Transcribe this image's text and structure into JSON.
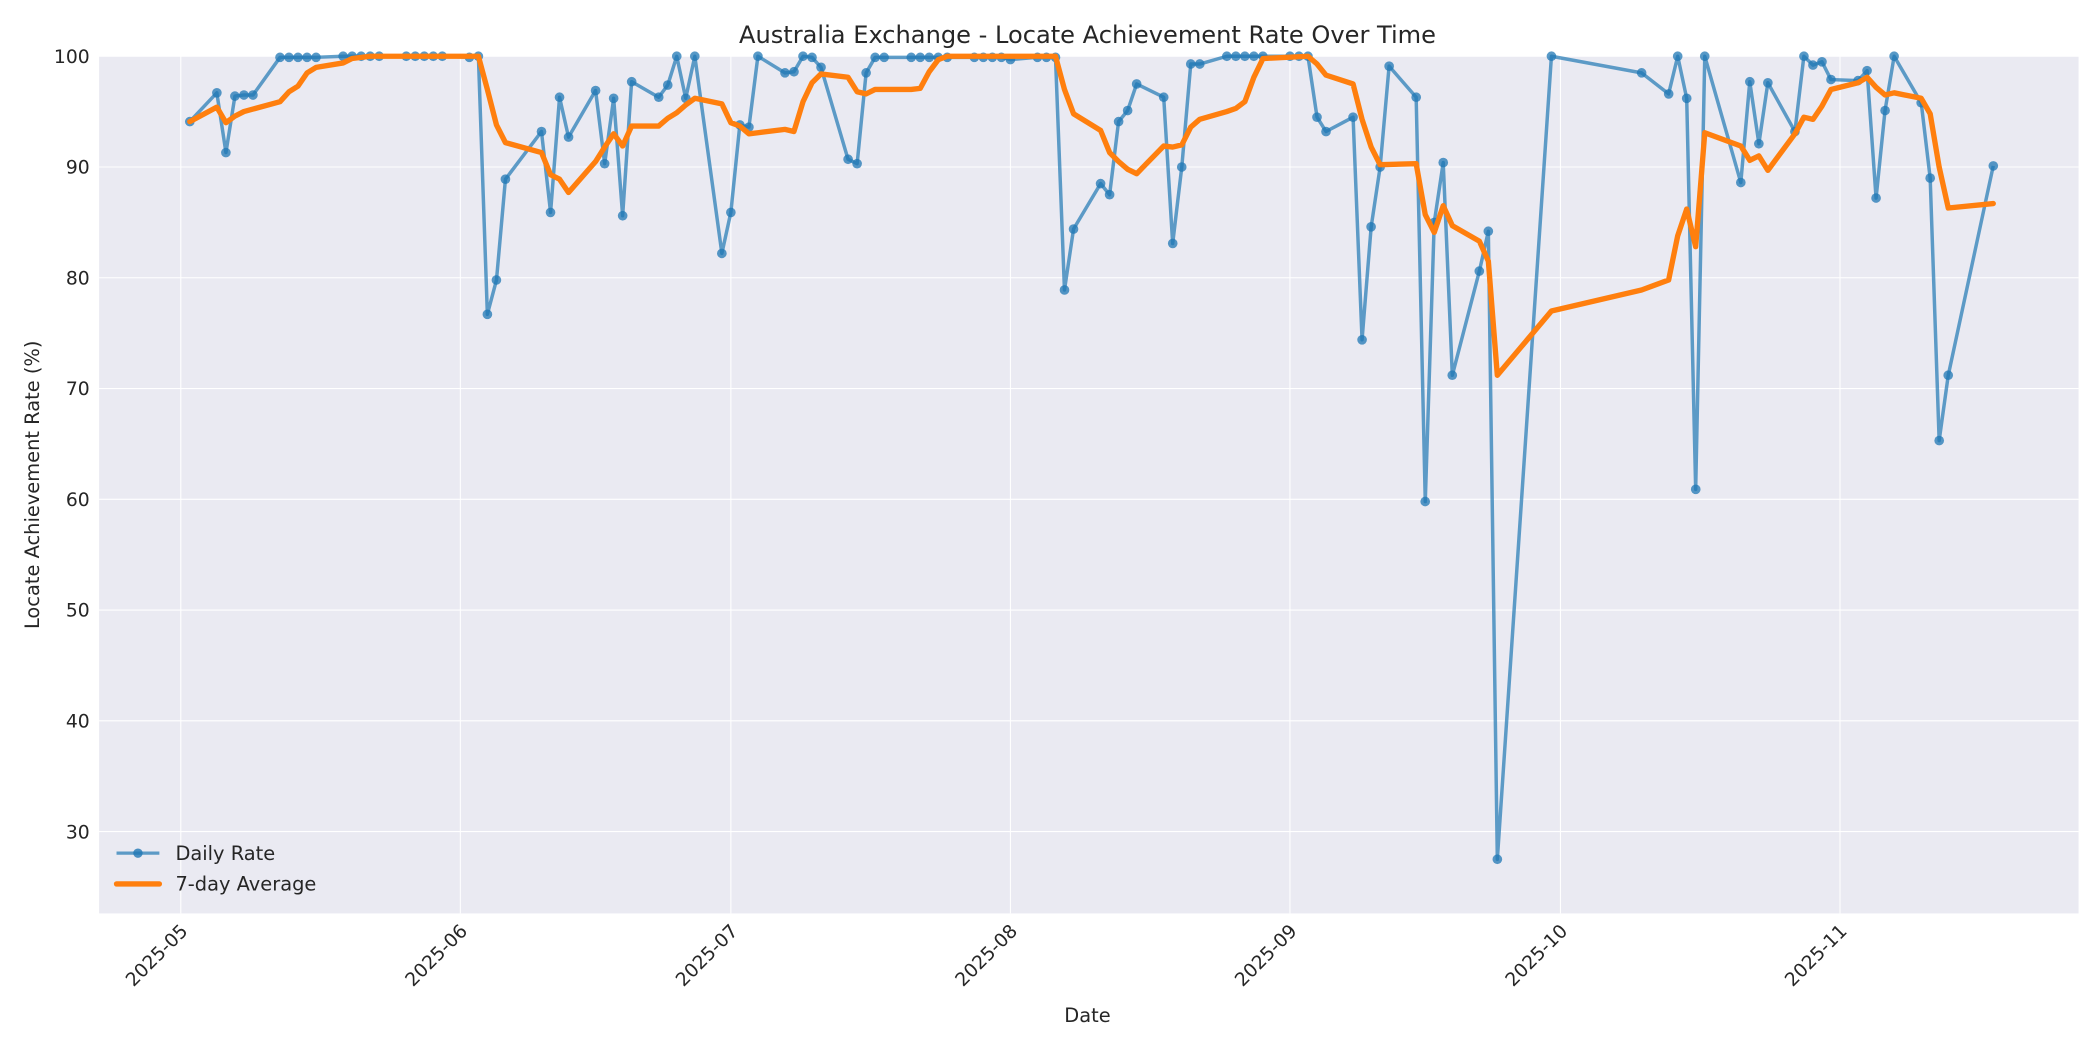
{
  "chart_data": {
    "type": "line",
    "title": "Australia Exchange - Locate Achievement Rate Over Time",
    "xlabel": "Date",
    "ylabel": "Locate Achievement Rate (%)",
    "ylim": [
      22.5,
      100
    ],
    "yticks": [
      30,
      40,
      50,
      60,
      70,
      80,
      90,
      100
    ],
    "xticks": [
      "2025-05",
      "2025-06",
      "2025-07",
      "2025-08",
      "2025-09",
      "2025-10",
      "2025-11"
    ],
    "grid": true,
    "legend_position": "lower left",
    "colors": {
      "daily": "#1f77b4",
      "avg": "#ff7f0e",
      "plot_bg": "#eaeaf2",
      "grid": "#ffffff"
    },
    "series": [
      {
        "name": "Daily Rate",
        "style": "line+markers",
        "points": [
          [
            "2025-05-02",
            94.1
          ],
          [
            "2025-05-05",
            96.7
          ],
          [
            "2025-05-06",
            91.3
          ],
          [
            "2025-05-07",
            96.4
          ],
          [
            "2025-05-08",
            96.5
          ],
          [
            "2025-05-09",
            96.5
          ],
          [
            "2025-05-12",
            99.9
          ],
          [
            "2025-05-13",
            99.9
          ],
          [
            "2025-05-14",
            99.9
          ],
          [
            "2025-05-15",
            99.9
          ],
          [
            "2025-05-16",
            99.9
          ],
          [
            "2025-05-19",
            100.0
          ],
          [
            "2025-05-20",
            100.0
          ],
          [
            "2025-05-21",
            100.0
          ],
          [
            "2025-05-22",
            100.0
          ],
          [
            "2025-05-23",
            100.0
          ],
          [
            "2025-05-26",
            100.0
          ],
          [
            "2025-05-27",
            100.0
          ],
          [
            "2025-05-28",
            100.0
          ],
          [
            "2025-05-29",
            100.0
          ],
          [
            "2025-05-30",
            100.0
          ],
          [
            "2025-06-02",
            99.9
          ],
          [
            "2025-06-03",
            100.0
          ],
          [
            "2025-06-04",
            76.7
          ],
          [
            "2025-06-05",
            79.8
          ],
          [
            "2025-06-06",
            88.9
          ],
          [
            "2025-06-10",
            93.2
          ],
          [
            "2025-06-11",
            85.9
          ],
          [
            "2025-06-12",
            96.3
          ],
          [
            "2025-06-13",
            92.7
          ],
          [
            "2025-06-16",
            96.9
          ],
          [
            "2025-06-17",
            90.3
          ],
          [
            "2025-06-18",
            96.2
          ],
          [
            "2025-06-19",
            85.6
          ],
          [
            "2025-06-20",
            97.7
          ],
          [
            "2025-06-23",
            96.3
          ],
          [
            "2025-06-24",
            97.4
          ],
          [
            "2025-06-25",
            100.0
          ],
          [
            "2025-06-26",
            96.2
          ],
          [
            "2025-06-27",
            100.0
          ],
          [
            "2025-06-30",
            82.2
          ],
          [
            "2025-07-01",
            85.9
          ],
          [
            "2025-07-02",
            93.8
          ],
          [
            "2025-07-03",
            93.6
          ],
          [
            "2025-07-04",
            100.0
          ],
          [
            "2025-07-07",
            98.5
          ],
          [
            "2025-07-08",
            98.6
          ],
          [
            "2025-07-09",
            100.0
          ],
          [
            "2025-07-10",
            99.9
          ],
          [
            "2025-07-11",
            99.0
          ],
          [
            "2025-07-14",
            90.7
          ],
          [
            "2025-07-15",
            90.3
          ],
          [
            "2025-07-16",
            98.5
          ],
          [
            "2025-07-17",
            99.9
          ],
          [
            "2025-07-18",
            99.9
          ],
          [
            "2025-07-21",
            99.9
          ],
          [
            "2025-07-22",
            99.9
          ],
          [
            "2025-07-23",
            99.9
          ],
          [
            "2025-07-24",
            99.9
          ],
          [
            "2025-07-25",
            99.9
          ],
          [
            "2025-07-28",
            99.9
          ],
          [
            "2025-07-29",
            99.9
          ],
          [
            "2025-07-30",
            99.9
          ],
          [
            "2025-07-31",
            99.9
          ],
          [
            "2025-08-01",
            99.7
          ],
          [
            "2025-08-04",
            99.9
          ],
          [
            "2025-08-05",
            99.9
          ],
          [
            "2025-08-06",
            99.9
          ],
          [
            "2025-08-07",
            78.9
          ],
          [
            "2025-08-08",
            84.4
          ],
          [
            "2025-08-11",
            88.5
          ],
          [
            "2025-08-12",
            87.5
          ],
          [
            "2025-08-13",
            94.1
          ],
          [
            "2025-08-14",
            95.1
          ],
          [
            "2025-08-15",
            97.5
          ],
          [
            "2025-08-18",
            96.3
          ],
          [
            "2025-08-19",
            83.1
          ],
          [
            "2025-08-20",
            90.0
          ],
          [
            "2025-08-21",
            99.3
          ],
          [
            "2025-08-22",
            99.3
          ],
          [
            "2025-08-25",
            100.0
          ],
          [
            "2025-08-26",
            100.0
          ],
          [
            "2025-08-27",
            100.0
          ],
          [
            "2025-08-28",
            100.0
          ],
          [
            "2025-08-29",
            100.0
          ],
          [
            "2025-09-01",
            100.0
          ],
          [
            "2025-09-02",
            100.0
          ],
          [
            "2025-09-03",
            100.0
          ],
          [
            "2025-09-04",
            94.5
          ],
          [
            "2025-09-05",
            93.2
          ],
          [
            "2025-09-08",
            94.5
          ],
          [
            "2025-09-09",
            74.4
          ],
          [
            "2025-09-10",
            84.6
          ],
          [
            "2025-09-11",
            90.0
          ],
          [
            "2025-09-12",
            99.1
          ],
          [
            "2025-09-15",
            96.3
          ],
          [
            "2025-09-16",
            59.8
          ],
          [
            "2025-09-17",
            85.0
          ],
          [
            "2025-09-18",
            90.4
          ],
          [
            "2025-09-19",
            71.2
          ],
          [
            "2025-09-22",
            80.6
          ],
          [
            "2025-09-23",
            84.2
          ],
          [
            "2025-09-24",
            27.5
          ],
          [
            "2025-09-30",
            100.0
          ],
          [
            "2025-10-10",
            98.5
          ],
          [
            "2025-10-13",
            96.6
          ],
          [
            "2025-10-14",
            100.0
          ],
          [
            "2025-10-15",
            96.2
          ],
          [
            "2025-10-16",
            60.9
          ],
          [
            "2025-10-17",
            100.0
          ],
          [
            "2025-10-21",
            88.6
          ],
          [
            "2025-10-22",
            97.7
          ],
          [
            "2025-10-23",
            92.1
          ],
          [
            "2025-10-24",
            97.6
          ],
          [
            "2025-10-27",
            93.2
          ],
          [
            "2025-10-28",
            100.0
          ],
          [
            "2025-10-29",
            99.2
          ],
          [
            "2025-10-30",
            99.5
          ],
          [
            "2025-10-31",
            97.9
          ],
          [
            "2025-11-03",
            97.8
          ],
          [
            "2025-11-04",
            98.7
          ],
          [
            "2025-11-05",
            87.2
          ],
          [
            "2025-11-06",
            95.1
          ],
          [
            "2025-11-07",
            100.0
          ],
          [
            "2025-11-10",
            95.8
          ],
          [
            "2025-11-11",
            89.0
          ],
          [
            "2025-11-12",
            65.3
          ],
          [
            "2025-11-13",
            71.2
          ],
          [
            "2025-11-18",
            90.1
          ]
        ]
      },
      {
        "name": "7-day Average",
        "style": "line",
        "points": [
          [
            "2025-05-02",
            94.1
          ],
          [
            "2025-05-05",
            95.4
          ],
          [
            "2025-05-06",
            94.0
          ],
          [
            "2025-05-07",
            94.6
          ],
          [
            "2025-05-08",
            95.0
          ],
          [
            "2025-05-12",
            95.9
          ],
          [
            "2025-05-13",
            96.8
          ],
          [
            "2025-05-14",
            97.3
          ],
          [
            "2025-05-15",
            98.5
          ],
          [
            "2025-05-16",
            99.0
          ],
          [
            "2025-05-19",
            99.4
          ],
          [
            "2025-05-20",
            99.8
          ],
          [
            "2025-05-22",
            100.0
          ],
          [
            "2025-06-03",
            100.0
          ],
          [
            "2025-06-04",
            97.0
          ],
          [
            "2025-06-05",
            93.8
          ],
          [
            "2025-06-06",
            92.2
          ],
          [
            "2025-06-10",
            91.3
          ],
          [
            "2025-06-11",
            89.3
          ],
          [
            "2025-06-12",
            88.9
          ],
          [
            "2025-06-13",
            87.7
          ],
          [
            "2025-06-16",
            90.5
          ],
          [
            "2025-06-17",
            91.8
          ],
          [
            "2025-06-18",
            93.0
          ],
          [
            "2025-06-19",
            91.9
          ],
          [
            "2025-06-20",
            93.7
          ],
          [
            "2025-06-23",
            93.7
          ],
          [
            "2025-06-24",
            94.4
          ],
          [
            "2025-06-25",
            94.9
          ],
          [
            "2025-06-26",
            95.6
          ],
          [
            "2025-06-27",
            96.2
          ],
          [
            "2025-06-30",
            95.7
          ],
          [
            "2025-07-01",
            94.0
          ],
          [
            "2025-07-02",
            93.7
          ],
          [
            "2025-07-03",
            93.0
          ],
          [
            "2025-07-04",
            93.1
          ],
          [
            "2025-07-07",
            93.4
          ],
          [
            "2025-07-08",
            93.2
          ],
          [
            "2025-07-09",
            95.9
          ],
          [
            "2025-07-10",
            97.6
          ],
          [
            "2025-07-11",
            98.4
          ],
          [
            "2025-07-14",
            98.1
          ],
          [
            "2025-07-15",
            96.8
          ],
          [
            "2025-07-16",
            96.6
          ],
          [
            "2025-07-17",
            97.0
          ],
          [
            "2025-07-21",
            97.0
          ],
          [
            "2025-07-22",
            97.1
          ],
          [
            "2025-07-23",
            98.6
          ],
          [
            "2025-07-24",
            99.7
          ],
          [
            "2025-07-25",
            100.0
          ],
          [
            "2025-08-06",
            100.0
          ],
          [
            "2025-08-07",
            97.0
          ],
          [
            "2025-08-08",
            94.8
          ],
          [
            "2025-08-11",
            93.3
          ],
          [
            "2025-08-12",
            91.3
          ],
          [
            "2025-08-13",
            90.5
          ],
          [
            "2025-08-14",
            89.8
          ],
          [
            "2025-08-15",
            89.4
          ],
          [
            "2025-08-18",
            91.9
          ],
          [
            "2025-08-19",
            91.8
          ],
          [
            "2025-08-20",
            92.0
          ],
          [
            "2025-08-21",
            93.6
          ],
          [
            "2025-08-22",
            94.3
          ],
          [
            "2025-08-25",
            95.0
          ],
          [
            "2025-08-26",
            95.3
          ],
          [
            "2025-08-27",
            95.9
          ],
          [
            "2025-08-28",
            98.1
          ],
          [
            "2025-08-29",
            99.8
          ],
          [
            "2025-09-03",
            100.0
          ],
          [
            "2025-09-04",
            99.3
          ],
          [
            "2025-09-05",
            98.3
          ],
          [
            "2025-09-08",
            97.5
          ],
          [
            "2025-09-09",
            94.3
          ],
          [
            "2025-09-10",
            91.8
          ],
          [
            "2025-09-11",
            90.2
          ],
          [
            "2025-09-15",
            90.3
          ],
          [
            "2025-09-16",
            85.7
          ],
          [
            "2025-09-17",
            84.1
          ],
          [
            "2025-09-18",
            86.5
          ],
          [
            "2025-09-19",
            84.7
          ],
          [
            "2025-09-22",
            83.3
          ],
          [
            "2025-09-23",
            81.5
          ],
          [
            "2025-09-24",
            71.2
          ],
          [
            "2025-09-30",
            77.0
          ],
          [
            "2025-10-10",
            78.9
          ],
          [
            "2025-10-13",
            79.8
          ],
          [
            "2025-10-14",
            83.8
          ],
          [
            "2025-10-15",
            86.2
          ],
          [
            "2025-10-16",
            82.8
          ],
          [
            "2025-10-17",
            93.1
          ],
          [
            "2025-10-21",
            91.9
          ],
          [
            "2025-10-22",
            90.6
          ],
          [
            "2025-10-23",
            91.0
          ],
          [
            "2025-10-24",
            89.7
          ],
          [
            "2025-10-27",
            93.0
          ],
          [
            "2025-10-28",
            94.5
          ],
          [
            "2025-10-29",
            94.3
          ],
          [
            "2025-10-30",
            95.5
          ],
          [
            "2025-10-31",
            97.0
          ],
          [
            "2025-11-03",
            97.6
          ],
          [
            "2025-11-04",
            98.1
          ],
          [
            "2025-11-05",
            97.2
          ],
          [
            "2025-11-06",
            96.5
          ],
          [
            "2025-11-07",
            96.7
          ],
          [
            "2025-11-10",
            96.2
          ],
          [
            "2025-11-11",
            94.8
          ],
          [
            "2025-11-12",
            90.0
          ],
          [
            "2025-11-13",
            86.3
          ],
          [
            "2025-11-18",
            86.7
          ]
        ]
      }
    ]
  }
}
